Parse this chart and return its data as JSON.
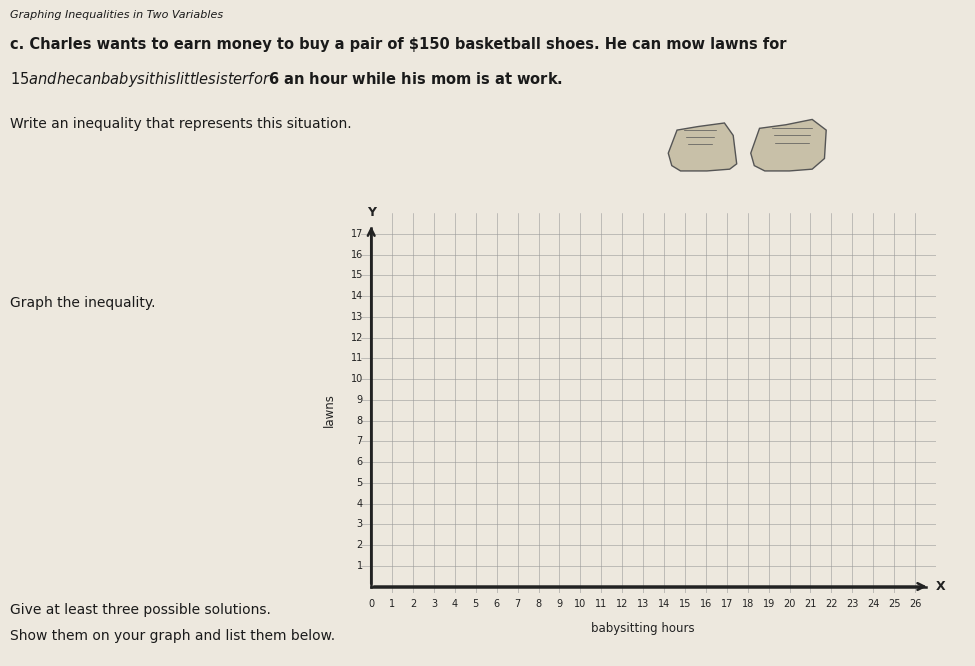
{
  "title_top": "Graphing Inequalities in Two Variables",
  "problem_text_line1": "c. Charles wants to earn money to buy a pair of $150 basketball shoes. He can mow lawns for",
  "problem_text_line2": "$15 and he can babysit his little sister for $6 an hour while his mom is at work.",
  "write_label": "Write an inequality that represents this situation.",
  "graph_label": "Graph the inequality.",
  "bottom_text_line1": "Give at least three possible solutions.",
  "bottom_text_line2": "Show them on your graph and list them below.",
  "xlabel": "babysitting hours",
  "ylabel": "lawns",
  "xmin": 0,
  "xmax": 26,
  "ymin": 0,
  "ymax": 17,
  "x_ticks": [
    0,
    1,
    2,
    3,
    4,
    5,
    6,
    7,
    8,
    9,
    10,
    11,
    12,
    13,
    14,
    15,
    16,
    17,
    18,
    19,
    20,
    21,
    22,
    23,
    24,
    25,
    26
  ],
  "y_ticks": [
    0,
    1,
    2,
    3,
    4,
    5,
    6,
    7,
    8,
    9,
    10,
    11,
    12,
    13,
    14,
    15,
    16,
    17
  ],
  "x_tick_labels": [
    "0",
    "1",
    "2",
    "3",
    "4",
    "5",
    "6",
    "7",
    "8",
    "9",
    "10",
    "11",
    "12",
    "13",
    "14",
    "15",
    "16",
    "17",
    "18",
    "19",
    "20",
    "21",
    "22",
    "23",
    "24",
    "25",
    "26"
  ],
  "y_tick_labels": [
    "",
    "1",
    "2",
    "3",
    "4",
    "5",
    "6",
    "7",
    "8",
    "9",
    "10",
    "11",
    "12",
    "13",
    "14",
    "15",
    "16",
    "17"
  ],
  "background_color": "#ede8de",
  "grid_color": "#999999",
  "axis_color": "#222222",
  "text_color": "#1a1a1a",
  "font_size_title": 8,
  "font_size_problem": 10.5,
  "font_size_labels": 8.5,
  "font_size_axis_label": 7
}
